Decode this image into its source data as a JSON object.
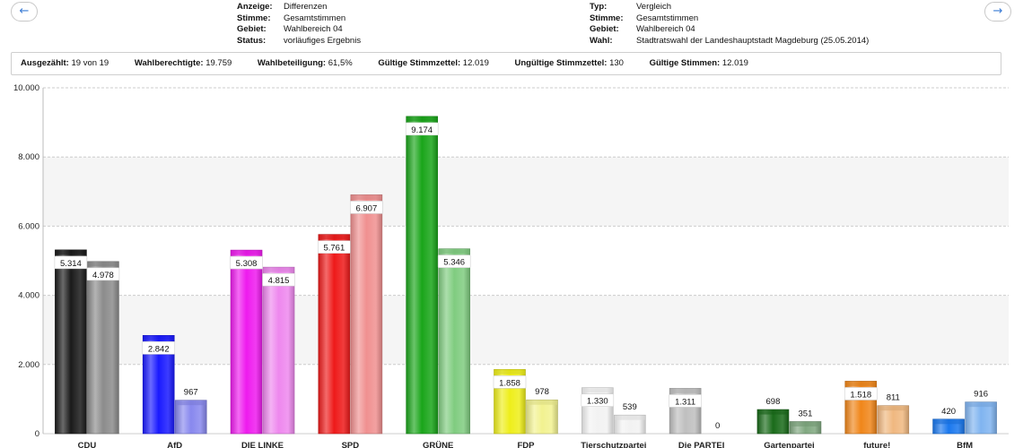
{
  "header": {
    "left": {
      "rows": [
        {
          "key": "Anzeige:",
          "value": "Differenzen"
        },
        {
          "key": "Stimme:",
          "value": "Gesamtstimmen"
        },
        {
          "key": "Gebiet:",
          "value": "Wahlbereich 04"
        },
        {
          "key": "Status:",
          "value": "vorläufiges Ergebnis"
        }
      ]
    },
    "right": {
      "rows": [
        {
          "key": "Typ:",
          "value": "Vergleich"
        },
        {
          "key": "Stimme:",
          "value": "Gesamtstimmen"
        },
        {
          "key": "Gebiet:",
          "value": "Wahlbereich 04"
        },
        {
          "key": "Wahl:",
          "value": "Stadtratswahl der Landeshauptstadt Magdeburg (25.05.2014)"
        }
      ]
    },
    "prev_label": "←",
    "next_label": "→"
  },
  "summary": {
    "items": [
      {
        "label": "Ausgezählt:",
        "value": "19 von 19"
      },
      {
        "label": "Wahlberechtigte:",
        "value": "19.759"
      },
      {
        "label": "Wahlbeteiligung:",
        "value": "61,5%"
      },
      {
        "label": "Gültige Stimmzettel:",
        "value": "12.019"
      },
      {
        "label": "Ungültige Stimmzettel:",
        "value": "130"
      },
      {
        "label": "Gültige Stimmen:",
        "value": "12.019"
      }
    ]
  },
  "chart_data": {
    "type": "bar",
    "ylim": [
      0,
      10000
    ],
    "yticks": [
      "0",
      "2.000",
      "4.000",
      "6.000",
      "8.000",
      "10.000"
    ],
    "grid": true,
    "categories": [
      "CDU",
      "AfD",
      "DIE LINKE",
      "SPD",
      "GRÜNE",
      "FDP",
      "Tierschutzpartei",
      "Die PARTEI",
      "Gartenpartei",
      "future!",
      "BfM"
    ],
    "series": [
      {
        "values": [
          5314,
          2842,
          5308,
          5761,
          9174,
          1858,
          1330,
          1311,
          698,
          1518,
          420
        ],
        "labels": [
          "5.314",
          "2.842",
          "5.308",
          "5.761",
          "9.174",
          "1.858",
          "1.330",
          "1.311",
          "698",
          "1.518",
          "420"
        ]
      },
      {
        "values": [
          4978,
          967,
          4815,
          6907,
          5346,
          978,
          539,
          0,
          351,
          811,
          916
        ],
        "labels": [
          "4.978",
          "967",
          "4.815",
          "6.907",
          "5.346",
          "978",
          "539",
          "0",
          "351",
          "811",
          "916"
        ]
      }
    ],
    "colors": [
      [
        "#1a1a1a",
        "#8c8c8c"
      ],
      [
        "#1a1aff",
        "#8888ee"
      ],
      [
        "#ee1aee",
        "#ee88ee"
      ],
      [
        "#ee1a1a",
        "#f09090"
      ],
      [
        "#1aa51a",
        "#80cc80"
      ],
      [
        "#eeee1a",
        "#f2f290"
      ],
      [
        "#f2f2f2",
        "#f2f2f2"
      ],
      [
        "#bfbfbf",
        "#bfbfbf"
      ],
      [
        "#1a6b1a",
        "#80a880"
      ],
      [
        "#f0861a",
        "#f0b880"
      ],
      [
        "#1a78ee",
        "#80b4f0"
      ]
    ]
  }
}
